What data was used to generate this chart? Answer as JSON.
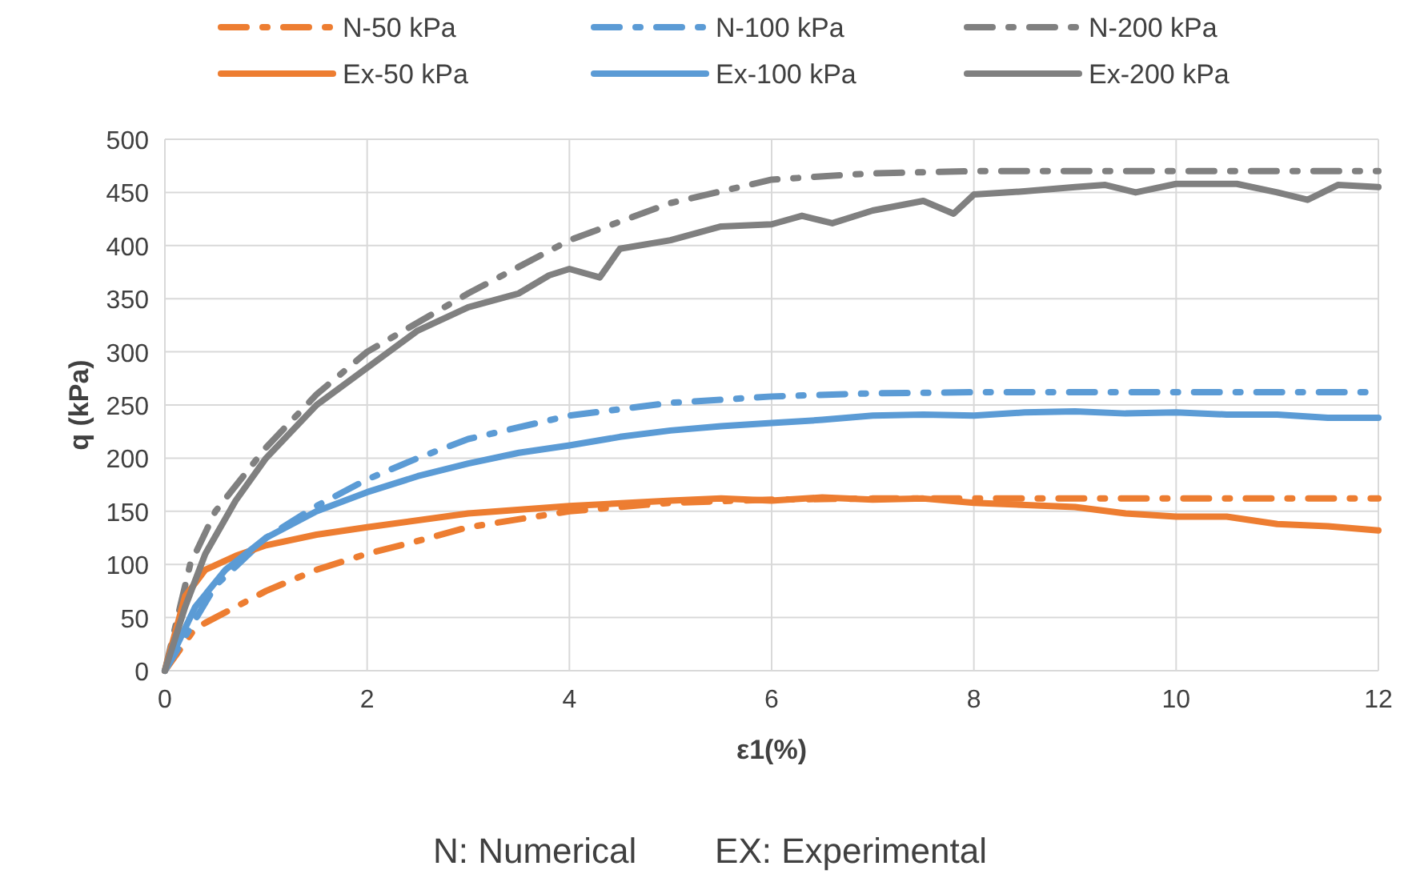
{
  "chart_data": {
    "type": "line",
    "xlabel": "ε1(%)",
    "ylabel": "q (kPa)",
    "xlim": [
      0,
      12
    ],
    "xticks": [
      0,
      2,
      4,
      6,
      8,
      10,
      12
    ],
    "ylim": [
      0,
      500
    ],
    "yticks": [
      0,
      50,
      100,
      150,
      200,
      250,
      300,
      350,
      400,
      450,
      500
    ],
    "grid": true,
    "legend": "top",
    "annotations": [
      "N: Numerical        EX: Experimental"
    ],
    "series": [
      {
        "name": "N-50 kPa",
        "color": "#ed7d31",
        "line_style": "dashed",
        "x": [
          0,
          0.3,
          0.6,
          1,
          1.5,
          2,
          2.5,
          3,
          4,
          5,
          6,
          7,
          8,
          12
        ],
        "values": [
          0,
          40,
          55,
          75,
          95,
          110,
          122,
          135,
          150,
          158,
          161,
          162,
          162,
          162
        ]
      },
      {
        "name": "N-100 kPa",
        "color": "#5b9bd5",
        "line_style": "dashed",
        "x": [
          0,
          0.5,
          1,
          1.5,
          2,
          2.5,
          3,
          4,
          5,
          6,
          7,
          8,
          12
        ],
        "values": [
          0,
          80,
          125,
          155,
          180,
          200,
          218,
          240,
          252,
          258,
          261,
          262,
          262
        ]
      },
      {
        "name": "N-200 kPa",
        "color": "#808080",
        "line_style": "dashed",
        "x": [
          0,
          0.25,
          0.5,
          1,
          1.5,
          2,
          3,
          4,
          5,
          6,
          7,
          8,
          9,
          10,
          11,
          12
        ],
        "values": [
          0,
          100,
          150,
          210,
          260,
          300,
          355,
          405,
          440,
          462,
          468,
          470,
          470,
          470,
          470,
          470
        ]
      },
      {
        "name": "Ex-50 kPa",
        "color": "#ed7d31",
        "line_style": "solid",
        "x": [
          0,
          0.2,
          0.4,
          0.7,
          1,
          1.5,
          2,
          3,
          4,
          5,
          5.5,
          6,
          6.5,
          7,
          7.5,
          8,
          9,
          9.5,
          10,
          10.5,
          11,
          11.5,
          12
        ],
        "values": [
          0,
          70,
          95,
          108,
          118,
          128,
          135,
          148,
          155,
          160,
          162,
          160,
          163,
          161,
          162,
          158,
          154,
          148,
          145,
          145,
          138,
          136,
          132
        ]
      },
      {
        "name": "Ex-100 kPa",
        "color": "#5b9bd5",
        "line_style": "solid",
        "x": [
          0,
          0.3,
          0.6,
          1,
          1.5,
          2,
          2.5,
          3,
          3.5,
          4,
          4.5,
          5,
          5.5,
          6,
          6.5,
          7,
          7.5,
          8,
          8.5,
          9,
          9.5,
          10,
          10.5,
          11,
          11.5,
          12
        ],
        "values": [
          0,
          60,
          95,
          125,
          150,
          168,
          183,
          195,
          205,
          212,
          220,
          226,
          230,
          233,
          236,
          240,
          241,
          240,
          243,
          244,
          242,
          243,
          241,
          241,
          238,
          238
        ]
      },
      {
        "name": "Ex-200 kPa",
        "color": "#808080",
        "line_style": "solid",
        "x": [
          0,
          0.2,
          0.4,
          0.7,
          1,
          1.5,
          2,
          2.5,
          3,
          3.5,
          3.8,
          4,
          4.3,
          4.5,
          5,
          5.5,
          6,
          6.3,
          6.6,
          7,
          7.5,
          7.8,
          8,
          8.5,
          9,
          9.3,
          9.6,
          10,
          10.6,
          11,
          11.3,
          11.6,
          12
        ],
        "values": [
          0,
          60,
          110,
          160,
          200,
          250,
          285,
          320,
          342,
          355,
          372,
          378,
          370,
          397,
          405,
          418,
          420,
          428,
          421,
          433,
          442,
          430,
          448,
          451,
          455,
          457,
          450,
          458,
          458,
          450,
          443,
          457,
          455
        ]
      }
    ]
  }
}
